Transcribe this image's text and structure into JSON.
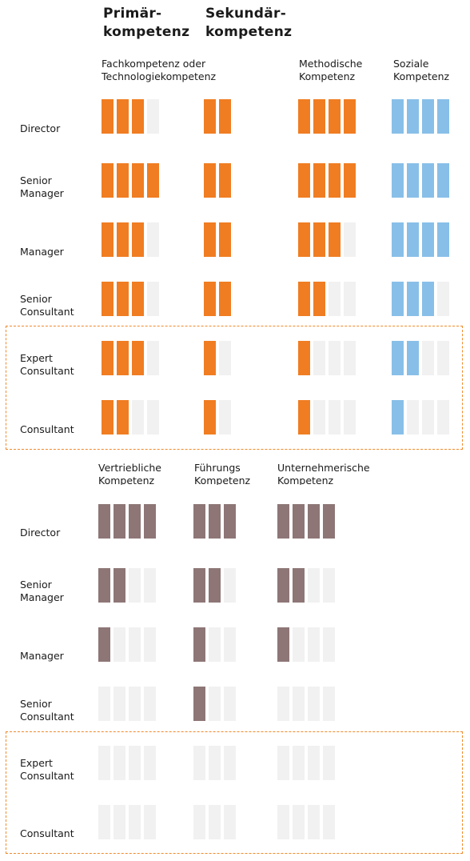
{
  "headings": {
    "primary": "Primär-\nkompetenz",
    "secondary": "Sekundär-\nkompetenz"
  },
  "roles": [
    "Director",
    "Senior\nManager",
    "Manager",
    "Senior\nConsultant",
    "Expert\nConsultant",
    "Consultant"
  ],
  "colors": {
    "orange": "#f07d22",
    "blue": "#88bfe8",
    "mauve": "#8e7676",
    "empty": "#f1f1f1",
    "highlight_border": "#f08a2a"
  },
  "chart_data": [
    {
      "type": "table",
      "rows": [
        "Director",
        "Senior Manager",
        "Manager",
        "Senior Consultant",
        "Expert Consultant",
        "Consultant"
      ],
      "highlighted_rows": [
        "Expert Consultant",
        "Consultant"
      ],
      "series": [
        {
          "name": "Fachkompetenz  oder\nTechnologiekompetenz",
          "color": "orange",
          "max": 4,
          "values": [
            3,
            4,
            3,
            3,
            3,
            2
          ]
        },
        {
          "name": "",
          "color": "orange",
          "max": 2,
          "values": [
            2,
            2,
            2,
            2,
            1,
            1
          ]
        },
        {
          "name": "Methodische\nKompetenz",
          "color": "orange",
          "max": 4,
          "values": [
            4,
            4,
            3,
            2,
            1,
            1
          ]
        },
        {
          "name": "Soziale\nKompetenz",
          "color": "blue",
          "max": 4,
          "values": [
            4,
            4,
            4,
            3,
            2,
            1
          ]
        }
      ]
    },
    {
      "type": "table",
      "rows": [
        "Director",
        "Senior Manager",
        "Manager",
        "Senior Consultant",
        "Expert Consultant",
        "Consultant"
      ],
      "highlighted_rows": [
        "Expert Consultant",
        "Consultant"
      ],
      "series": [
        {
          "name": "Vertriebliche\nKompetenz",
          "color": "mauve",
          "max": 4,
          "values": [
            4,
            2,
            1,
            0,
            0,
            0
          ]
        },
        {
          "name": "Führungs\nKompetenz",
          "color": "mauve",
          "max": 3,
          "values": [
            3,
            2,
            1,
            1,
            0,
            0
          ]
        },
        {
          "name": "Unternehmerische\nKompetenz",
          "color": "mauve",
          "max": 4,
          "values": [
            4,
            2,
            1,
            0,
            0,
            0
          ]
        }
      ]
    }
  ]
}
